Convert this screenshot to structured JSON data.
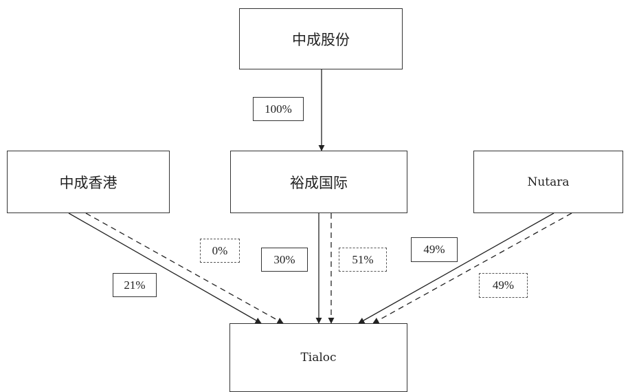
{
  "entities": {
    "zhongcheng_shares": "中成股份",
    "zhongcheng_hk": "中成香港",
    "yucheng_intl": "裕成国际",
    "nutara": "Nutara",
    "tialoc": "Tialoc"
  },
  "percentages": {
    "shares_to_yucheng": "100%",
    "hk_to_tialoc_solid": "21%",
    "hk_to_tialoc_dashed": "0%",
    "yucheng_to_tialoc_solid": "30%",
    "yucheng_to_tialoc_dashed": "51%",
    "nutara_to_tialoc_solid": "49%",
    "nutara_to_tialoc_dashed": "49%"
  },
  "colors": {
    "line": "#333333",
    "box_border": "#333333",
    "background": "#ffffff"
  }
}
